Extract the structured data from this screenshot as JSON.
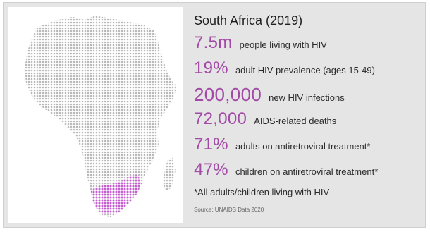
{
  "title": "South Africa (2019)",
  "stats": [
    {
      "value": "7.5m",
      "label": "people living with HIV"
    },
    {
      "value": "19%",
      "label": "adult HIV prevalence (ages 15-49)"
    },
    {
      "value": "200,000",
      "label": "new HIV infections"
    },
    {
      "value": "72,000",
      "label": "AIDS-related deaths"
    },
    {
      "value": "71%",
      "label": "adults on antiretroviral treatment*"
    },
    {
      "value": "47%",
      "label": "children on antiretroviral treatment*"
    }
  ],
  "footnote": "*All adults/children living with HIV",
  "source": "Source: UNAIDS Data 2020",
  "colors": {
    "accent": "#a24aa6",
    "continent_dots": "#b9b9b9",
    "highlight_dots": "#c45fcf"
  }
}
